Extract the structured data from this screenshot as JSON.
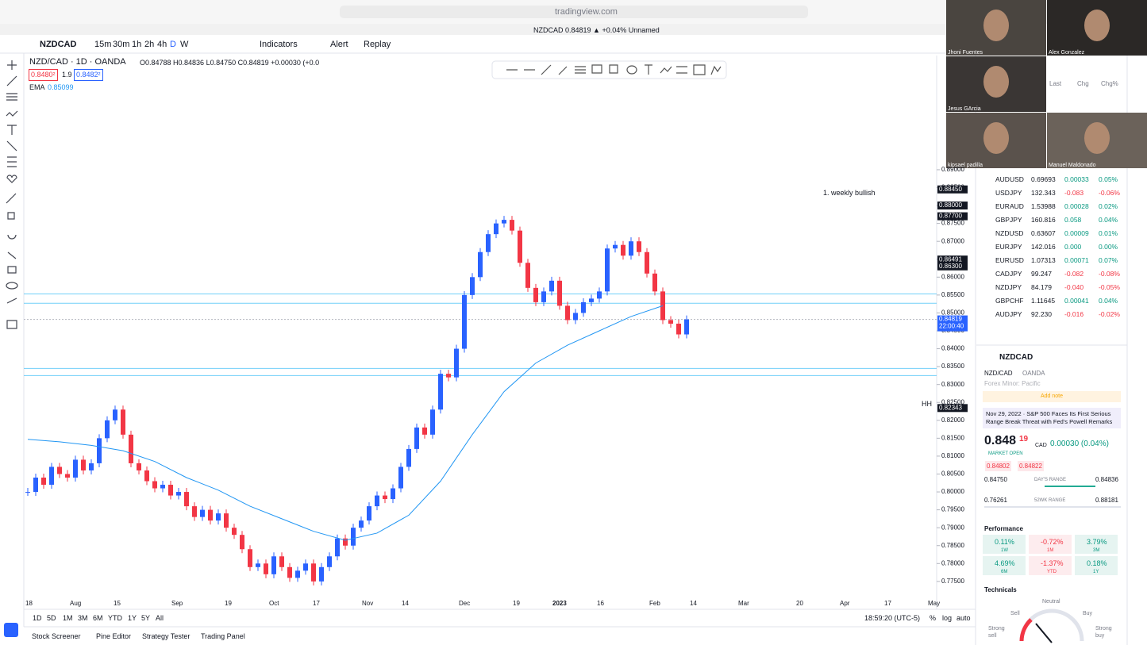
{
  "browser": {
    "url": "tradingview.com",
    "tab_title": "NZDCAD 0.84819 ▲ +0.04% Unnamed"
  },
  "toolbar": {
    "symbol": "NZDCAD",
    "intervals": [
      "15m",
      "30m",
      "1h",
      "2h",
      "4h",
      "D",
      "W"
    ],
    "indicators": "Indicators",
    "alert": "Alert",
    "replay": "Replay"
  },
  "legend": {
    "title": "NZD/CAD · 1D · OANDA",
    "ohlc": "O0.84788 H0.84836 L0.84750 C0.84819 +0.00030 (+0.0",
    "bid": "0.8480²",
    "spread": "1.9",
    "ask": "0.8482²",
    "ema_label": "EMA",
    "ema_value": "0.85099"
  },
  "chart": {
    "ylim": [
      0.7712,
      0.9219
    ],
    "yticks": [
      {
        "value": 0.775,
        "label": "0.77500"
      },
      {
        "value": 0.78,
        "label": "0.78000"
      },
      {
        "value": 0.785,
        "label": "0.78500"
      },
      {
        "value": 0.79,
        "label": "0.79000"
      },
      {
        "value": 0.795,
        "label": "0.79500"
      },
      {
        "value": 0.8,
        "label": "0.80000"
      },
      {
        "value": 0.805,
        "label": "0.80500"
      },
      {
        "value": 0.81,
        "label": "0.81000"
      },
      {
        "value": 0.815,
        "label": "0.81500"
      },
      {
        "value": 0.82,
        "label": "0.82000"
      },
      {
        "value": 0.825,
        "label": "0.82500"
      },
      {
        "value": 0.83,
        "label": "0.83000"
      },
      {
        "value": 0.835,
        "label": "0.83500"
      },
      {
        "value": 0.84,
        "label": "0.84000"
      },
      {
        "value": 0.845,
        "label": "0.84500"
      },
      {
        "value": 0.85,
        "label": "0.85000"
      },
      {
        "value": 0.855,
        "label": "0.85500"
      },
      {
        "value": 0.86,
        "label": "0.86000"
      },
      {
        "value": 0.865,
        "label": "0.86500"
      },
      {
        "value": 0.87,
        "label": "0.87000"
      },
      {
        "value": 0.875,
        "label": "0.87500"
      },
      {
        "value": 0.88,
        "label": "0.88000"
      },
      {
        "value": 0.885,
        "label": "0.88500"
      },
      {
        "value": 0.89,
        "label": "0.89000"
      }
    ],
    "closes": [
      0.8,
      0.804,
      0.802,
      0.807,
      0.805,
      0.804,
      0.809,
      0.806,
      0.808,
      0.815,
      0.82,
      0.823,
      0.816,
      0.808,
      0.806,
      0.803,
      0.801,
      0.802,
      0.799,
      0.8,
      0.796,
      0.793,
      0.795,
      0.792,
      0.794,
      0.79,
      0.788,
      0.784,
      0.779,
      0.78,
      0.777,
      0.782,
      0.779,
      0.776,
      0.778,
      0.78,
      0.775,
      0.779,
      0.782,
      0.787,
      0.785,
      0.79,
      0.792,
      0.796,
      0.799,
      0.798,
      0.801,
      0.807,
      0.812,
      0.818,
      0.816,
      0.823,
      0.833,
      0.832,
      0.84,
      0.855,
      0.86,
      0.867,
      0.872,
      0.875,
      0.876,
      0.873,
      0.864,
      0.857,
      0.853,
      0.856,
      0.859,
      0.852,
      0.848,
      0.85,
      0.853,
      0.854,
      0.856,
      0.868,
      0.869,
      0.866,
      0.87,
      0.867,
      0.861,
      0.856,
      0.848,
      0.847,
      0.844,
      0.84819
    ],
    "ema": [
      0.8147,
      0.814,
      0.813,
      0.8115,
      0.8085,
      0.804,
      0.8005,
      0.796,
      0.7925,
      0.789,
      0.7865,
      0.7885,
      0.7935,
      0.803,
      0.816,
      0.828,
      0.836,
      0.841,
      0.845,
      0.849,
      0.852
    ],
    "levels": [
      0.8553,
      0.8527,
      0.8345,
      0.8325
    ],
    "price_tags": [
      {
        "value": 0.8845,
        "label": "0.88450"
      },
      {
        "value": 0.88,
        "label": "0.88000"
      },
      {
        "value": 0.877,
        "label": "0.87700"
      },
      {
        "value": 0.86491,
        "label": "0.86491"
      },
      {
        "value": 0.863,
        "label": "0.86300"
      },
      {
        "value": 0.82343,
        "label": "0.82343"
      }
    ],
    "last_price": {
      "value": 0.84819,
      "label": "0.84819",
      "countdown": "22:00:40"
    },
    "annotations": [
      "1. weekly bullish",
      "HH"
    ],
    "time_labels": [
      "18",
      "Aug",
      "15",
      "Sep",
      "19",
      "Oct",
      "17",
      "Nov",
      "14",
      "Dec",
      "19",
      "2023",
      "16",
      "Feb",
      "14",
      "Mar",
      "20",
      "Apr",
      "17",
      "May"
    ]
  },
  "range_bar": {
    "ranges": [
      "1D",
      "5D",
      "1M",
      "3M",
      "6M",
      "YTD",
      "1Y",
      "5Y",
      "All"
    ],
    "clock": "18:59:20 (UTC-5)",
    "percent": "%",
    "log": "log",
    "auto": "auto"
  },
  "bottom_tabs": [
    "Stock Screener",
    "Pine Editor",
    "Strategy Tester",
    "Trading Panel"
  ],
  "participants": [
    "Jhoni Fuentes",
    "Alex Gonzalez",
    "Jesus GArcia",
    "kipsael padilla",
    "Manuel Maldonado"
  ],
  "watchlist": {
    "columns": [
      "Last",
      "Chg",
      "Chg%"
    ],
    "rows": [
      [
        "AUDUSD",
        "0.69693",
        "0.00033",
        "0.05%"
      ],
      [
        "USDJPY",
        "132.343",
        "-0.083",
        "-0.06%"
      ],
      [
        "EURAUD",
        "1.53988",
        "0.00028",
        "0.02%"
      ],
      [
        "GBPJPY",
        "160.816",
        "0.058",
        "0.04%"
      ],
      [
        "NZDUSD",
        "0.63607",
        "0.00009",
        "0.01%"
      ],
      [
        "EURJPY",
        "142.016",
        "0.000",
        "0.00%"
      ],
      [
        "EURUSD",
        "1.07313",
        "0.00071",
        "0.07%"
      ],
      [
        "CADJPY",
        "99.247",
        "-0.082",
        "-0.08%"
      ],
      [
        "NZDJPY",
        "84.179",
        "-0.040",
        "-0.05%"
      ],
      [
        "GBPCHF",
        "1.11645",
        "0.00041",
        "0.04%"
      ],
      [
        "AUDJPY",
        "92.230",
        "-0.016",
        "-0.02%"
      ]
    ]
  },
  "details": {
    "symbol": "NZDCAD",
    "pair": "NZD/CAD",
    "exchange": "OANDA",
    "category": "Forex Minor: Pacific",
    "add_note": "Add note",
    "news": "Nov 29, 2022 · S&P 500 Faces Its First Serious Range Break Threat with Fed's Powell Remarks",
    "price_main": "0.848",
    "price_frac": "19",
    "currency": "CAD",
    "change": "0.00030 (0.04%)",
    "status": "MARKET OPEN",
    "bid": "0.84802",
    "ask": "0.84822",
    "day_low": "0.84750",
    "day_label": "DAY'S RANGE",
    "day_high": "0.84836",
    "wk_low": "0.76261",
    "wk_label": "52WK RANGE",
    "wk_high": "0.88181",
    "performance": "Performance",
    "perf": [
      {
        "value": "0.11%",
        "period": "1W"
      },
      {
        "value": "-0.72%",
        "period": "1M"
      },
      {
        "value": "3.79%",
        "period": "3M"
      },
      {
        "value": "4.69%",
        "period": "6M"
      },
      {
        "value": "-1.37%",
        "period": "YTD"
      },
      {
        "value": "0.18%",
        "period": "1Y"
      }
    ],
    "technicals": "Technicals",
    "gauge": {
      "neutral": "Neutral",
      "sell": "Sell",
      "buy": "Buy",
      "strong_sell": "Strong sell",
      "strong_buy": "Strong buy"
    }
  }
}
